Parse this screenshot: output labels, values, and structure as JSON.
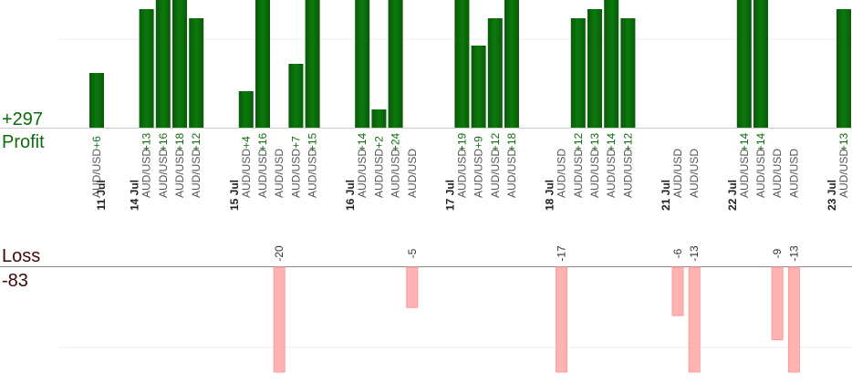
{
  "chart_data": {
    "type": "bar",
    "profit": {
      "total": "+297",
      "label": "Profit"
    },
    "loss": {
      "total": "-83",
      "label": "Loss"
    },
    "colors": {
      "profit": "#0b6e0b",
      "loss": "#ffb3b3",
      "profit_text": "#0f6b0f",
      "text": "#555555",
      "date": "#222222"
    },
    "dates": [
      {
        "label": "11 Jul",
        "at": 1
      },
      {
        "label": "14 Jul",
        "at": 3
      },
      {
        "label": "15 Jul",
        "at": 9
      },
      {
        "label": "16 Jul",
        "at": 16
      },
      {
        "label": "17 Jul",
        "at": 22
      },
      {
        "label": "18 Jul",
        "at": 28
      },
      {
        "label": "21 Jul",
        "at": 35
      },
      {
        "label": "22 Jul",
        "at": 39
      },
      {
        "label": "23 Jul",
        "at": 45
      }
    ],
    "trades": [
      {
        "pair": "AUD/USD",
        "value": 6
      },
      {
        "pair": "",
        "value": null
      },
      {
        "pair": "",
        "value": null
      },
      {
        "pair": "AUD/USD",
        "value": 13
      },
      {
        "pair": "AUD/USD",
        "value": 16
      },
      {
        "pair": "AUD/USD",
        "value": 18
      },
      {
        "pair": "AUD/USD",
        "value": 12
      },
      {
        "pair": "",
        "value": null
      },
      {
        "pair": "",
        "value": null
      },
      {
        "pair": "AUD/USD",
        "value": 4
      },
      {
        "pair": "AUD/USD",
        "value": 16
      },
      {
        "pair": "AUD/USD",
        "value": -20
      },
      {
        "pair": "AUD/USD",
        "value": 7
      },
      {
        "pair": "AUD/USD",
        "value": 15
      },
      {
        "pair": "",
        "value": null
      },
      {
        "pair": "",
        "value": null
      },
      {
        "pair": "AUD/USD",
        "value": 14
      },
      {
        "pair": "AUD/USD",
        "value": 2
      },
      {
        "pair": "AUD/USD",
        "value": 24
      },
      {
        "pair": "AUD/USD",
        "value": -5
      },
      {
        "pair": "",
        "value": null
      },
      {
        "pair": "",
        "value": null
      },
      {
        "pair": "AUD/USD",
        "value": 19
      },
      {
        "pair": "AUD/USD",
        "value": 9
      },
      {
        "pair": "AUD/USD",
        "value": 12
      },
      {
        "pair": "AUD/USD",
        "value": 18
      },
      {
        "pair": "",
        "value": null
      },
      {
        "pair": "",
        "value": null
      },
      {
        "pair": "AUD/USD",
        "value": -17
      },
      {
        "pair": "AUD/USD",
        "value": 12
      },
      {
        "pair": "AUD/USD",
        "value": 13
      },
      {
        "pair": "AUD/USD",
        "value": 14
      },
      {
        "pair": "AUD/USD",
        "value": 12
      },
      {
        "pair": "",
        "value": null
      },
      {
        "pair": "",
        "value": null
      },
      {
        "pair": "AUD/USD",
        "value": -6
      },
      {
        "pair": "AUD/USD",
        "value": -13
      },
      {
        "pair": "",
        "value": null
      },
      {
        "pair": "",
        "value": null
      },
      {
        "pair": "AUD/USD",
        "value": 14
      },
      {
        "pair": "AUD/USD",
        "value": 14
      },
      {
        "pair": "AUD/USD",
        "value": -9
      },
      {
        "pair": "AUD/USD",
        "value": -13
      },
      {
        "pair": "",
        "value": null
      },
      {
        "pair": "",
        "value": null
      },
      {
        "pair": "AUD/USD",
        "value": 13
      }
    ],
    "profit_ylim": [
      0,
      14
    ],
    "loss_ylim": [
      -13,
      0
    ],
    "grid": true
  }
}
